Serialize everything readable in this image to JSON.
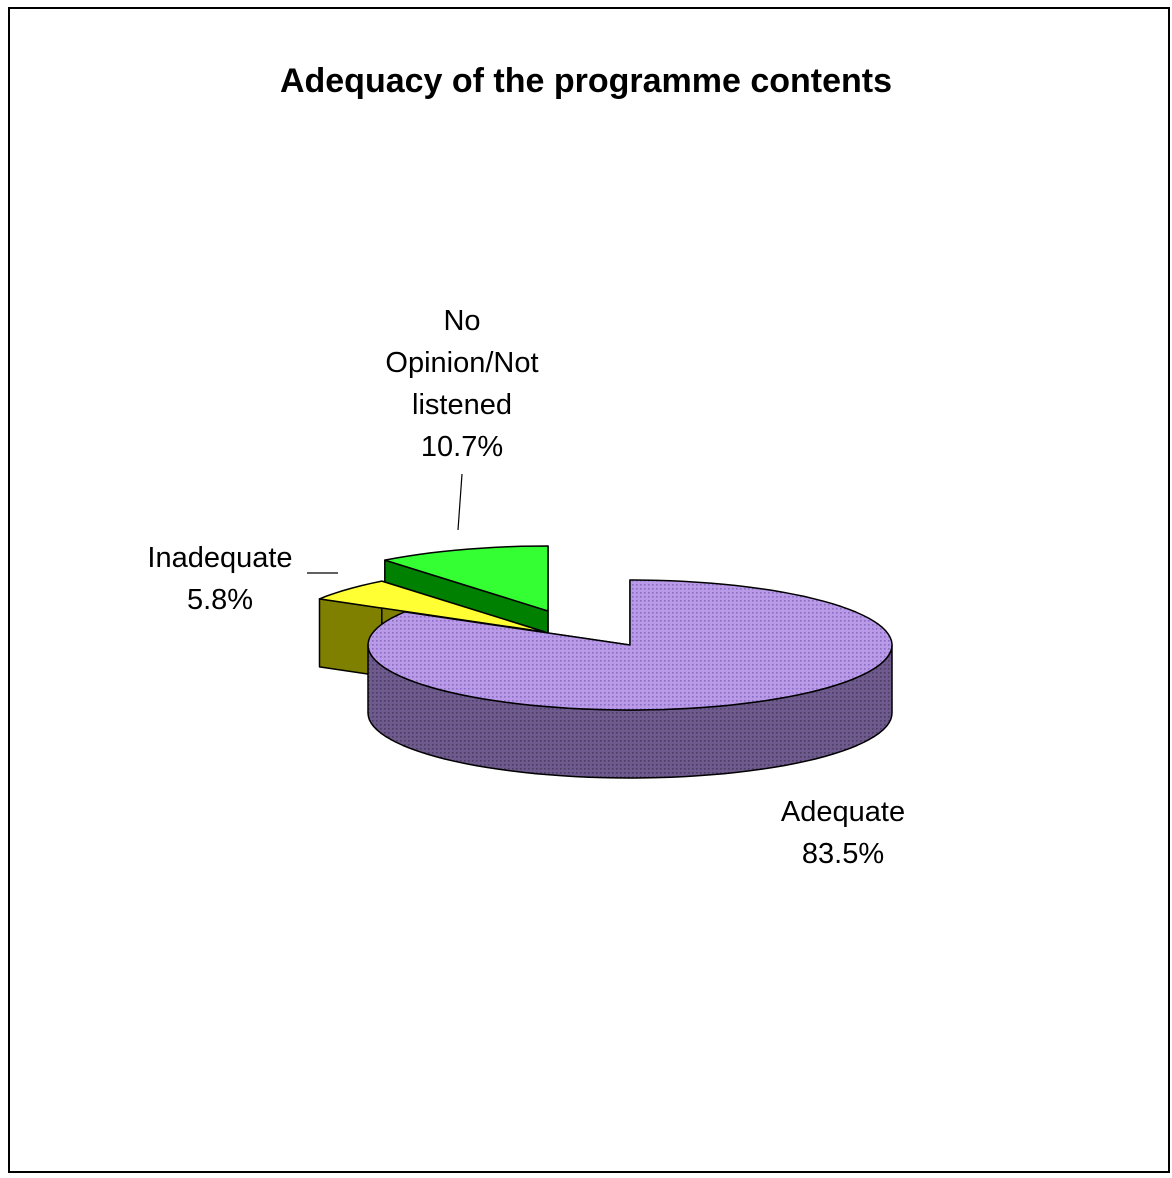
{
  "chart_data": {
    "type": "pie",
    "title": "Adequacy of the programme contents",
    "three_d": true,
    "exploded": true,
    "legend": "none",
    "slices": [
      {
        "name": "Adequate",
        "percent_label": "83.5%",
        "value": 83.5,
        "top_color": "#b99ae8",
        "side_color": "#6e5a8c",
        "pattern": "fine-dotted"
      },
      {
        "name": "Inadequate",
        "percent_label": "5.8%",
        "value": 5.8,
        "top_color": "#ffff33",
        "side_color": "#808000"
      },
      {
        "name": "No Opinion/Not listened",
        "name_lines": [
          "No",
          "Opinion/Not",
          "listened"
        ],
        "percent_label": "10.7%",
        "value": 10.7,
        "top_color": "#33ff33",
        "side_color": "#008000"
      }
    ]
  }
}
